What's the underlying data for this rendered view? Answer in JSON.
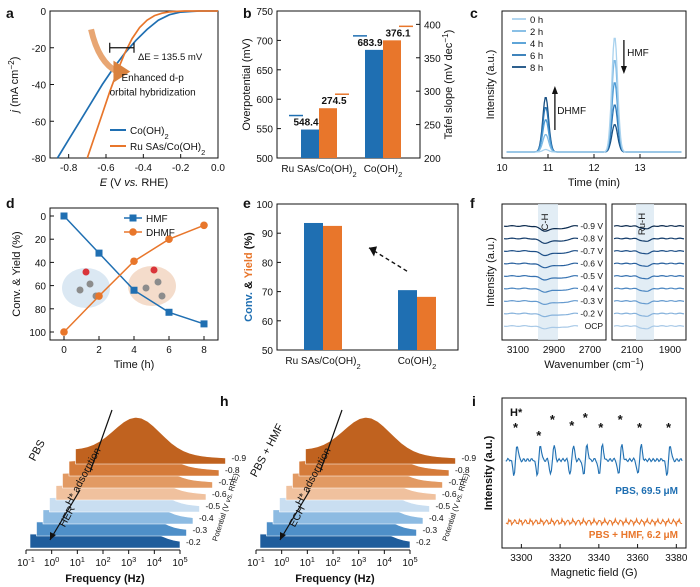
{
  "colors": {
    "blue": "#1f6fb2",
    "orange": "#e8762b",
    "dark": "#111111"
  },
  "chart_data": [
    {
      "panel": "a",
      "type": "line",
      "xlabel": "E (V vs. RHE)",
      "ylabel": "j (mA cm-2)",
      "xlim": [
        -0.9,
        0.0
      ],
      "ylim": [
        -80,
        0
      ],
      "xticks": [
        "-0.8",
        "-0.6",
        "-0.4",
        "-0.2",
        "0.0"
      ],
      "yticks": [
        "0",
        "-20",
        "-40",
        "-60",
        "-80"
      ],
      "annotation": "ΔE = 135.5 mV",
      "arrow_text": [
        "Enhanced d-p",
        "orbital hybridization"
      ],
      "series": [
        {
          "name": "Co(OH)2",
          "x": [
            -0.86,
            -0.8,
            -0.74,
            -0.68,
            -0.62,
            -0.56,
            -0.5,
            -0.44,
            -0.38,
            -0.32,
            -0.26,
            -0.2,
            -0.14,
            -0.1,
            0.0
          ],
          "y": [
            -80,
            -70,
            -60,
            -50,
            -40,
            -31,
            -23,
            -16,
            -10,
            -5,
            -2,
            -0.6,
            -0.2,
            0,
            0
          ]
        },
        {
          "name": "Ru SAs/Co(OH)2",
          "x": [
            -0.7,
            -0.66,
            -0.62,
            -0.58,
            -0.54,
            -0.5,
            -0.46,
            -0.42,
            -0.38,
            -0.34,
            -0.3,
            -0.26,
            -0.22,
            -0.18,
            -0.1,
            0.0
          ],
          "y": [
            -80,
            -68,
            -56,
            -44,
            -33,
            -23,
            -15,
            -9,
            -5,
            -2.5,
            -1.2,
            -0.5,
            -0.2,
            0,
            0,
            0
          ]
        }
      ]
    },
    {
      "panel": "b",
      "type": "bar",
      "categories": [
        "Ru SAs/Co(OH)2",
        "Co(OH)2"
      ],
      "ylabel": "Overpotential (mV)",
      "y2label": "Tafel slope (mV dec-1)",
      "ylim": [
        500,
        750
      ],
      "y2lim": [
        200,
        420
      ],
      "yticks": [
        "500",
        "550",
        "600",
        "650",
        "700",
        "750"
      ],
      "y2ticks": [
        "200",
        "250",
        "300",
        "350",
        "400"
      ],
      "series": [
        {
          "name": "Overpotential",
          "axis": "left",
          "values": [
            548.4,
            683.9
          ],
          "labels": [
            "548.4",
            "683.9"
          ]
        },
        {
          "name": "Tafel slope",
          "axis": "right",
          "values": [
            274.5,
            376.1
          ],
          "labels": [
            "274.5",
            "376.1"
          ]
        }
      ]
    },
    {
      "panel": "c",
      "type": "line",
      "xlabel": "Time (min)",
      "ylabel": "Intensity (a.u.)",
      "xlim": [
        10,
        14
      ],
      "xticks": [
        "10",
        "11",
        "12",
        "13"
      ],
      "legend": [
        "0 h",
        "2 h",
        "4 h",
        "6 h",
        "8 h"
      ],
      "labels": [
        "DHMF",
        "HMF"
      ],
      "peaks": {
        "dhmf_time": 10.95,
        "hmf_time": 12.45,
        "dhmf_heights": [
          0.02,
          0.14,
          0.26,
          0.36,
          0.44
        ],
        "hmf_heights": [
          0.92,
          0.74,
          0.56,
          0.38,
          0.22
        ]
      }
    },
    {
      "panel": "d",
      "type": "line",
      "xlabel": "Time (h)",
      "ylabel": "Conv. & Yield (%)",
      "xlim": [
        0,
        8
      ],
      "ylim": [
        100,
        0
      ],
      "xticks": [
        "0",
        "2",
        "4",
        "6",
        "8"
      ],
      "yticks": [
        "0",
        "20",
        "40",
        "60",
        "80",
        "100"
      ],
      "x": [
        0,
        2,
        4,
        6,
        8
      ],
      "series": [
        {
          "name": "HMF",
          "values": [
            0,
            32,
            64,
            83,
            93
          ]
        },
        {
          "name": "DHMF",
          "values": [
            100,
            69,
            39,
            20,
            8
          ]
        }
      ]
    },
    {
      "panel": "e",
      "type": "bar",
      "ylabel": "Conv. & Yield (%)",
      "ylabel_parts": [
        "Conv.",
        " & ",
        "Yield",
        " (%)"
      ],
      "categories": [
        "Ru SAs/Co(OH)2",
        "Co(OH)2"
      ],
      "ylim": [
        50,
        100
      ],
      "yticks": [
        "50",
        "60",
        "70",
        "80",
        "90",
        "100"
      ],
      "series": [
        {
          "name": "Conv.",
          "values": [
            93.5,
            70.5
          ]
        },
        {
          "name": "Yield",
          "values": [
            92.5,
            68.2
          ]
        }
      ]
    },
    {
      "panel": "f",
      "type": "line",
      "xlabel": "Wavenumber (cm−1)",
      "ylabel": "Intensity (a.u.)",
      "left_xticks": [
        "3100",
        "2900",
        "2700"
      ],
      "right_xticks": [
        "2100",
        "1900"
      ],
      "band_labels": [
        "C-H",
        "Ru-H"
      ],
      "potentials": [
        "-0.9 V",
        "-0.8 V",
        "-0.7 V",
        "-0.6 V",
        "-0.5 V",
        "-0.4 V",
        "-0.3 V",
        "-0.2 V",
        "OCP"
      ]
    },
    {
      "panel": "g",
      "type": "area",
      "xlabel": "Frequency (Hz)",
      "zlabel": "Potential (V vs. RHE)",
      "xticks": [
        "10-1",
        "100",
        "101",
        "102",
        "103",
        "104",
        "105"
      ],
      "potentials": [
        "-0.2",
        "-0.3",
        "-0.4",
        "-0.5",
        "-0.6",
        "-0.7",
        "-0.8",
        "-0.9"
      ],
      "labels": [
        "PBS",
        "H* adsorption",
        "HER"
      ]
    },
    {
      "panel": "h",
      "type": "area",
      "xlabel": "Frequency (Hz)",
      "zlabel": "Potential (V vs. RHE)",
      "xticks": [
        "10-1",
        "100",
        "101",
        "102",
        "103",
        "104",
        "105"
      ],
      "potentials": [
        "-0.2",
        "-0.3",
        "-0.4",
        "-0.5",
        "-0.6",
        "-0.7",
        "-0.8",
        "-0.9"
      ],
      "labels": [
        "PBS + HMF",
        "H* adsorption",
        "ECH"
      ]
    },
    {
      "panel": "i",
      "type": "line",
      "xlabel": "Magnetic field (G)",
      "ylabel": "Intensity (a.u.)",
      "xlim": [
        3290,
        3385
      ],
      "xticks": [
        "3300",
        "3320",
        "3340",
        "3360",
        "3380"
      ],
      "title": "H*",
      "series": [
        {
          "name": "PBS, 69.5 μM"
        },
        {
          "name": "PBS + HMF, 6.2 μM"
        }
      ]
    }
  ]
}
